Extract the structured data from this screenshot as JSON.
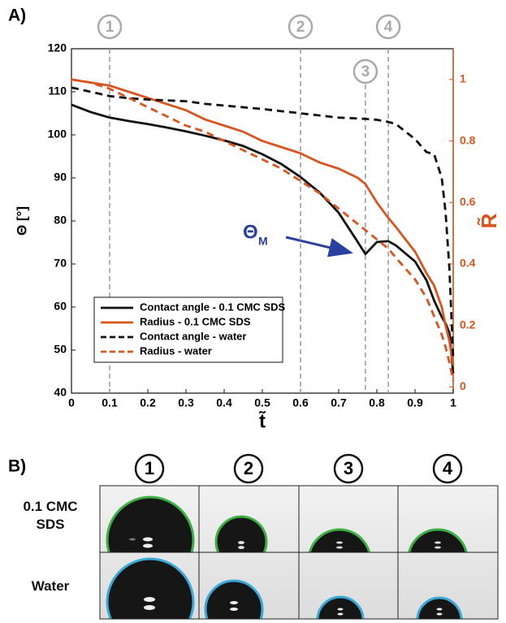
{
  "chart_data": {
    "type": "line",
    "panel_label": "A)",
    "x_label": "t̃",
    "y_label": "Θ [°]",
    "y2_label": "R̃",
    "xlim": [
      0,
      1
    ],
    "xticks": [
      0,
      0.1,
      0.2,
      0.3,
      0.4,
      0.5,
      0.6,
      0.7,
      0.8,
      0.9,
      1
    ],
    "ylim": [
      40,
      120
    ],
    "yticks": [
      40,
      50,
      60,
      70,
      80,
      90,
      100,
      110,
      120
    ],
    "y2lim": [
      -0.02,
      1.1
    ],
    "y2ticks": [
      0,
      0.2,
      0.4,
      0.6,
      0.8,
      1
    ],
    "y2_color": "#d9541e",
    "legend": "lower left",
    "x": [
      0,
      0.05,
      0.1,
      0.15,
      0.2,
      0.25,
      0.3,
      0.35,
      0.4,
      0.45,
      0.5,
      0.55,
      0.6,
      0.65,
      0.7,
      0.75,
      0.77,
      0.8,
      0.83,
      0.85,
      0.9,
      0.93,
      0.95,
      0.97,
      0.98,
      0.99,
      1
    ],
    "series": [
      {
        "name": "Contact angle - 0.1 CMC SDS",
        "color": "#111111",
        "line_style": "solid",
        "values": [
          107,
          105.3,
          104,
          103.2,
          102.5,
          101.7,
          100.8,
          99.8,
          98.7,
          97.4,
          95.5,
          93.2,
          90.2,
          86.6,
          81.9,
          75.1,
          72.3,
          75.1,
          75.3,
          74.3,
          70.6,
          66.2,
          61.5,
          57.7,
          56.2,
          54,
          44.6
        ]
      },
      {
        "name": "Radius - 0.1 CMC SDS",
        "color": "#d9541e",
        "line_style": "solid",
        "axis": "y2",
        "values": [
          1.0,
          0.99,
          0.98,
          0.96,
          0.94,
          0.92,
          0.9,
          0.87,
          0.85,
          0.83,
          0.8,
          0.78,
          0.76,
          0.73,
          0.71,
          0.68,
          0.66,
          0.6,
          0.55,
          0.52,
          0.44,
          0.37,
          0.33,
          0.26,
          0.2,
          0.15,
          0.07
        ]
      },
      {
        "name": "Contact angle - water",
        "color": "#111111",
        "line_style": "dashed",
        "values": [
          111,
          110,
          109,
          108.5,
          108.2,
          108,
          107.8,
          107.2,
          106.8,
          106.4,
          106,
          105.5,
          105,
          104.5,
          104,
          103.8,
          103.7,
          103.5,
          103,
          102.5,
          99,
          96,
          95.5,
          90,
          82,
          69,
          48
        ]
      },
      {
        "name": "Radius - water",
        "color": "#d9541e",
        "line_style": "dashed",
        "axis": "y2",
        "values": [
          1.0,
          0.99,
          0.97,
          0.94,
          0.91,
          0.88,
          0.85,
          0.83,
          0.8,
          0.77,
          0.74,
          0.71,
          0.67,
          0.63,
          0.58,
          0.53,
          0.51,
          0.48,
          0.45,
          0.42,
          0.35,
          0.29,
          0.23,
          0.17,
          0.13,
          0.08,
          0.02
        ]
      }
    ],
    "markers": [
      {
        "label": "1",
        "value": 0.1
      },
      {
        "label": "2",
        "value": 0.6
      },
      {
        "label": "3",
        "value": 0.77
      },
      {
        "label": "4",
        "value": 0.83
      }
    ],
    "annotation": {
      "text": "Θ",
      "subscript": "M"
    }
  },
  "panel_b": {
    "label": "B)",
    "columns": [
      "1",
      "2",
      "3",
      "4"
    ],
    "rows": [
      "0.1 CMC SDS",
      "Water"
    ]
  }
}
